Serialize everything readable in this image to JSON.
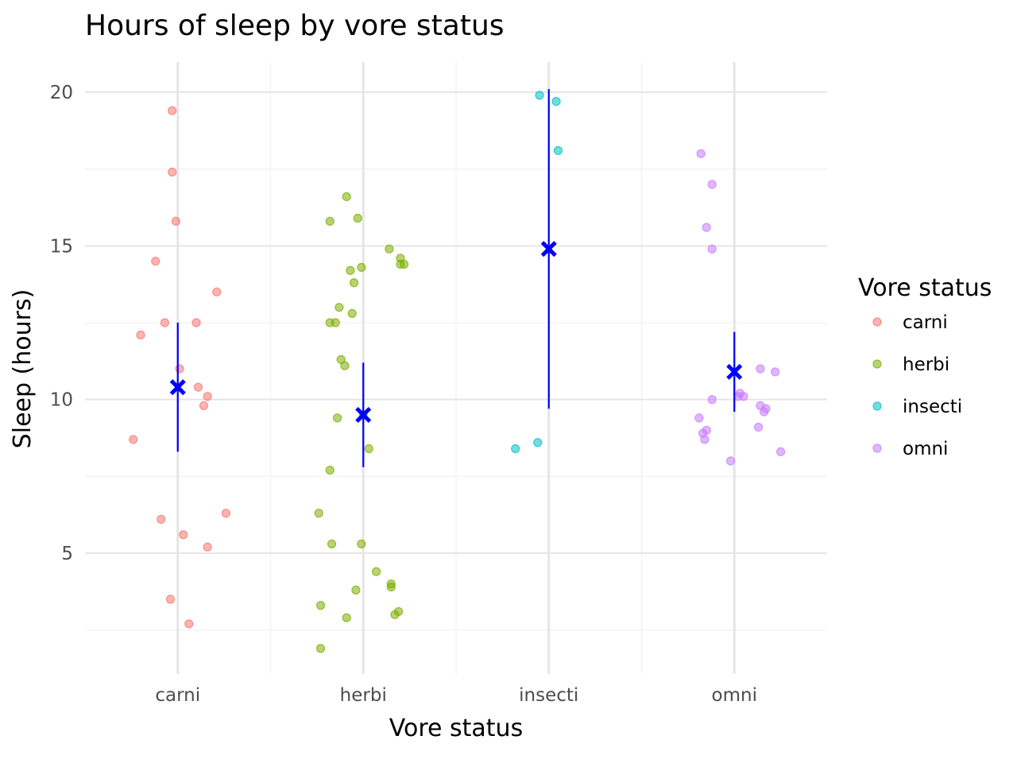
{
  "chart_data": {
    "type": "scatter",
    "title": "Hours of sleep by vore status",
    "xlabel": "Vore status",
    "ylabel": "Sleep (hours)",
    "categories": [
      "carni",
      "herbi",
      "insecti",
      "omni"
    ],
    "ylim": [
      1.0,
      21.0
    ],
    "yticks": [
      5,
      10,
      15,
      20
    ],
    "y_minor_ticks": [
      2.5,
      7.5,
      12.5,
      17.5
    ],
    "grid": true,
    "legend": {
      "title": "Vore status",
      "position": "right",
      "entries": [
        "carni",
        "herbi",
        "insecti",
        "omni"
      ]
    },
    "colors": {
      "carni": "#F8766D",
      "herbi": "#7CAE00",
      "insecti": "#00BFC4",
      "omni": "#C77CFF",
      "summary": "#0000FF"
    },
    "series": [
      {
        "name": "carni",
        "points": [
          {
            "x": -0.03,
            "y": 19.4
          },
          {
            "x": -0.03,
            "y": 17.4
          },
          {
            "x": -0.01,
            "y": 15.8
          },
          {
            "x": -0.12,
            "y": 14.5
          },
          {
            "x": 0.21,
            "y": 13.5
          },
          {
            "x": -0.2,
            "y": 12.1
          },
          {
            "x": -0.07,
            "y": 12.5
          },
          {
            "x": 0.1,
            "y": 12.5
          },
          {
            "x": 0.01,
            "y": 11.0
          },
          {
            "x": 0.11,
            "y": 10.4
          },
          {
            "x": 0.16,
            "y": 10.1
          },
          {
            "x": 0.14,
            "y": 9.8
          },
          {
            "x": -0.24,
            "y": 8.7
          },
          {
            "x": -0.09,
            "y": 6.1
          },
          {
            "x": 0.26,
            "y": 6.3
          },
          {
            "x": 0.03,
            "y": 5.6
          },
          {
            "x": 0.16,
            "y": 5.2
          },
          {
            "x": -0.04,
            "y": 3.5
          },
          {
            "x": 0.06,
            "y": 2.7
          }
        ]
      },
      {
        "name": "herbi",
        "points": [
          {
            "x": -0.09,
            "y": 16.6
          },
          {
            "x": -0.18,
            "y": 15.8
          },
          {
            "x": -0.03,
            "y": 15.9
          },
          {
            "x": 0.14,
            "y": 14.9
          },
          {
            "x": 0.2,
            "y": 14.6
          },
          {
            "x": 0.2,
            "y": 14.4
          },
          {
            "x": 0.22,
            "y": 14.4
          },
          {
            "x": -0.01,
            "y": 14.3
          },
          {
            "x": -0.07,
            "y": 14.2
          },
          {
            "x": -0.05,
            "y": 13.8
          },
          {
            "x": -0.13,
            "y": 13.0
          },
          {
            "x": -0.06,
            "y": 12.8
          },
          {
            "x": -0.18,
            "y": 12.5
          },
          {
            "x": -0.15,
            "y": 12.5
          },
          {
            "x": -0.12,
            "y": 11.3
          },
          {
            "x": -0.1,
            "y": 11.1
          },
          {
            "x": 0.0,
            "y": 9.5
          },
          {
            "x": -0.14,
            "y": 9.4
          },
          {
            "x": 0.03,
            "y": 8.4
          },
          {
            "x": -0.18,
            "y": 7.7
          },
          {
            "x": -0.24,
            "y": 6.3
          },
          {
            "x": -0.17,
            "y": 5.3
          },
          {
            "x": -0.01,
            "y": 5.3
          },
          {
            "x": 0.07,
            "y": 4.4
          },
          {
            "x": 0.15,
            "y": 3.9
          },
          {
            "x": 0.15,
            "y": 4.0
          },
          {
            "x": -0.04,
            "y": 3.8
          },
          {
            "x": -0.23,
            "y": 3.3
          },
          {
            "x": 0.19,
            "y": 3.1
          },
          {
            "x": 0.17,
            "y": 3.0
          },
          {
            "x": -0.09,
            "y": 2.9
          },
          {
            "x": -0.23,
            "y": 1.9
          }
        ]
      },
      {
        "name": "insecti",
        "points": [
          {
            "x": -0.05,
            "y": 19.9
          },
          {
            "x": 0.04,
            "y": 19.7
          },
          {
            "x": 0.05,
            "y": 18.1
          },
          {
            "x": -0.06,
            "y": 8.6
          },
          {
            "x": -0.18,
            "y": 8.4
          }
        ]
      },
      {
        "name": "omni",
        "points": [
          {
            "x": -0.18,
            "y": 18.0
          },
          {
            "x": -0.12,
            "y": 17.0
          },
          {
            "x": -0.15,
            "y": 15.6
          },
          {
            "x": -0.12,
            "y": 14.9
          },
          {
            "x": 0.14,
            "y": 11.0
          },
          {
            "x": 0.22,
            "y": 10.9
          },
          {
            "x": 0.03,
            "y": 10.2
          },
          {
            "x": 0.05,
            "y": 10.1
          },
          {
            "x": 0.02,
            "y": 10.1
          },
          {
            "x": -0.12,
            "y": 10.0
          },
          {
            "x": 0.14,
            "y": 9.8
          },
          {
            "x": 0.17,
            "y": 9.7
          },
          {
            "x": 0.16,
            "y": 9.6
          },
          {
            "x": -0.19,
            "y": 9.4
          },
          {
            "x": 0.13,
            "y": 9.1
          },
          {
            "x": -0.15,
            "y": 9.0
          },
          {
            "x": -0.17,
            "y": 8.9
          },
          {
            "x": -0.16,
            "y": 8.7
          },
          {
            "x": 0.25,
            "y": 8.3
          },
          {
            "x": -0.02,
            "y": 8.0
          }
        ]
      }
    ],
    "summary": {
      "categories": [
        "carni",
        "herbi",
        "insecti",
        "omni"
      ],
      "mean": [
        10.4,
        9.5,
        14.9,
        10.9
      ],
      "lower": [
        8.3,
        7.8,
        9.7,
        9.6
      ],
      "upper": [
        12.5,
        11.2,
        20.1,
        12.2
      ]
    }
  }
}
